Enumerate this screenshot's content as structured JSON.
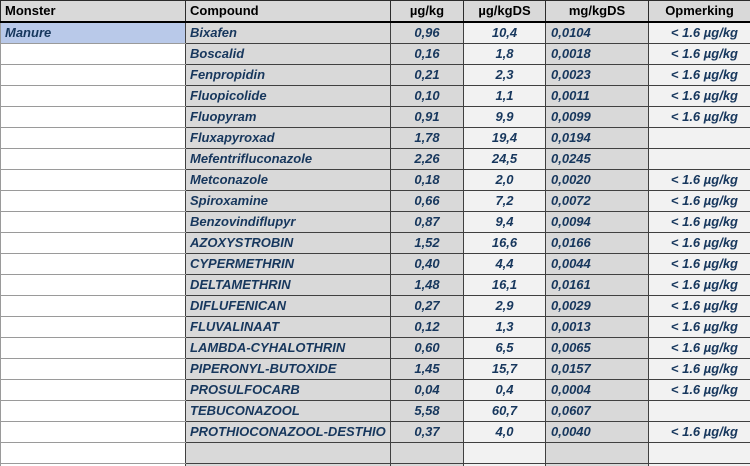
{
  "colors": {
    "cell_gray": "#d9d9d9",
    "cell_light": "#f2f2f2",
    "selection_blue": "#b9c9e9",
    "data_text_navy": "#17375d",
    "header_text": "#000000"
  },
  "table": {
    "headers": {
      "monster": "Monster",
      "compound": "Compound",
      "ug_kg": "µg/kg",
      "ug_kgds": "µg/kgDS",
      "mg_kgds": "mg/kgDS",
      "opmerking": "Opmerking"
    },
    "monster_value": "Manure",
    "rows": [
      {
        "compound": "Bixafen",
        "ug_kg": "0,96",
        "ug_kgds": "10,4",
        "mg_kgds": "0,0104",
        "opmerking": "< 1.6 µg/kg"
      },
      {
        "compound": "Boscalid",
        "ug_kg": "0,16",
        "ug_kgds": "1,8",
        "mg_kgds": "0,0018",
        "opmerking": "< 1.6 µg/kg"
      },
      {
        "compound": "Fenpropidin",
        "ug_kg": "0,21",
        "ug_kgds": "2,3",
        "mg_kgds": "0,0023",
        "opmerking": "< 1.6 µg/kg"
      },
      {
        "compound": "Fluopicolide",
        "ug_kg": "0,10",
        "ug_kgds": "1,1",
        "mg_kgds": "0,0011",
        "opmerking": "< 1.6 µg/kg"
      },
      {
        "compound": "Fluopyram",
        "ug_kg": "0,91",
        "ug_kgds": "9,9",
        "mg_kgds": "0,0099",
        "opmerking": "< 1.6 µg/kg"
      },
      {
        "compound": "Fluxapyroxad",
        "ug_kg": "1,78",
        "ug_kgds": "19,4",
        "mg_kgds": "0,0194",
        "opmerking": ""
      },
      {
        "compound": "Mefentrifluconazole",
        "ug_kg": "2,26",
        "ug_kgds": "24,5",
        "mg_kgds": "0,0245",
        "opmerking": ""
      },
      {
        "compound": "Metconazole",
        "ug_kg": "0,18",
        "ug_kgds": "2,0",
        "mg_kgds": "0,0020",
        "opmerking": "< 1.6 µg/kg"
      },
      {
        "compound": "Spiroxamine",
        "ug_kg": "0,66",
        "ug_kgds": "7,2",
        "mg_kgds": "0,0072",
        "opmerking": "< 1.6 µg/kg"
      },
      {
        "compound": "Benzovindiflupyr",
        "ug_kg": "0,87",
        "ug_kgds": "9,4",
        "mg_kgds": "0,0094",
        "opmerking": "< 1.6 µg/kg"
      },
      {
        "compound": "AZOXYSTROBIN",
        "ug_kg": "1,52",
        "ug_kgds": "16,6",
        "mg_kgds": "0,0166",
        "opmerking": "< 1.6 µg/kg"
      },
      {
        "compound": "CYPERMETHRIN",
        "ug_kg": "0,40",
        "ug_kgds": "4,4",
        "mg_kgds": "0,0044",
        "opmerking": "< 1.6 µg/kg"
      },
      {
        "compound": "DELTAMETHRIN",
        "ug_kg": "1,48",
        "ug_kgds": "16,1",
        "mg_kgds": "0,0161",
        "opmerking": "< 1.6 µg/kg"
      },
      {
        "compound": "DIFLUFENICAN",
        "ug_kg": "0,27",
        "ug_kgds": "2,9",
        "mg_kgds": "0,0029",
        "opmerking": "< 1.6 µg/kg"
      },
      {
        "compound": "FLUVALINAAT",
        "ug_kg": "0,12",
        "ug_kgds": "1,3",
        "mg_kgds": "0,0013",
        "opmerking": "< 1.6 µg/kg"
      },
      {
        "compound": "LAMBDA-CYHALOTHRIN",
        "ug_kg": "0,60",
        "ug_kgds": "6,5",
        "mg_kgds": "0,0065",
        "opmerking": "< 1.6 µg/kg"
      },
      {
        "compound": "PIPERONYL-BUTOXIDE",
        "ug_kg": "1,45",
        "ug_kgds": "15,7",
        "mg_kgds": "0,0157",
        "opmerking": "< 1.6 µg/kg"
      },
      {
        "compound": "PROSULFOCARB",
        "ug_kg": "0,04",
        "ug_kgds": "0,4",
        "mg_kgds": "0,0004",
        "opmerking": "< 1.6 µg/kg"
      },
      {
        "compound": "TEBUCONAZOOL",
        "ug_kg": "5,58",
        "ug_kgds": "60,7",
        "mg_kgds": "0,0607",
        "opmerking": ""
      },
      {
        "compound": "PROTHIOCONAZOOL-DESTHIO",
        "ug_kg": "0,37",
        "ug_kgds": "4,0",
        "mg_kgds": "0,0040",
        "opmerking": "< 1.6 µg/kg"
      }
    ],
    "trailing_empty_rows": 2
  }
}
